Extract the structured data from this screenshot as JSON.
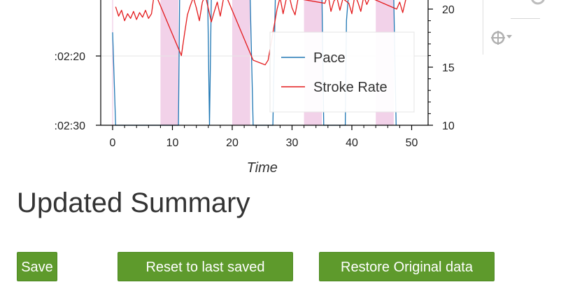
{
  "chart_data": {
    "type": "line",
    "xlabel": "Time",
    "x_ticks": [
      0,
      10,
      20,
      30,
      40,
      50
    ],
    "left_axis_ticks": [
      ":02:20",
      ":02:30"
    ],
    "right_axis_ticks": [
      10,
      15,
      20
    ],
    "xlim": [
      -2,
      52
    ],
    "right_ylim": [
      10,
      22
    ],
    "shaded_intervals": [
      [
        8,
        11
      ],
      [
        20,
        23
      ],
      [
        32,
        35
      ],
      [
        44,
        47
      ]
    ],
    "series": [
      {
        "name": "Pace",
        "color": "#1f77b4",
        "x": [
          0,
          0.5,
          11,
          11.2,
          15.9,
          16.2,
          16.5,
          23,
          23.5,
          26.8,
          27.2,
          33,
          35,
          35.3,
          38.9,
          39.1,
          39.4,
          47,
          47.4
        ],
        "y": [
          18,
          10,
          10,
          21,
          21,
          10,
          21,
          21,
          10,
          10,
          21,
          21,
          21,
          10,
          10,
          19,
          21,
          21,
          10
        ]
      },
      {
        "name": "Stroke Rate",
        "color": "#e31a1c",
        "x": [
          0.5,
          1,
          1.5,
          2,
          2.5,
          3,
          3.5,
          4,
          4.5,
          5,
          5.5,
          6,
          6.5,
          7,
          11.5,
          12,
          12.5,
          13,
          13.5,
          14,
          14.5,
          15,
          15.5,
          16.5,
          17,
          17.5,
          18,
          18.5,
          19,
          23.5,
          24,
          24.5,
          25,
          25.5,
          26,
          27.5,
          28,
          28.5,
          29,
          29.5,
          30,
          30.5,
          31,
          35.5,
          36,
          36.5,
          37,
          37.5,
          38,
          38.5,
          39.5,
          40,
          40.5,
          41,
          41.5,
          42,
          42.5,
          43,
          47.5,
          48,
          48.5,
          49
        ],
        "y": [
          20.2,
          19.4,
          19.9,
          19.0,
          19.6,
          19.2,
          19.8,
          19.1,
          19.7,
          19.3,
          19.9,
          19.2,
          19.6,
          21.5,
          16.0,
          17.8,
          19.5,
          20.3,
          21.0,
          20.1,
          19.0,
          20.6,
          21.2,
          18.9,
          19.8,
          20.6,
          19.4,
          20.8,
          21.1,
          15.6,
          15.5,
          15.4,
          15.3,
          15.2,
          15.6,
          20.0,
          21.0,
          19.6,
          20.8,
          21.2,
          20.1,
          19.5,
          20.9,
          20.5,
          21.3,
          19.8,
          20.7,
          21.0,
          19.9,
          20.9,
          20.5,
          19.6,
          21.2,
          20.6,
          19.8,
          21.1,
          20.4,
          21.0,
          20.0,
          20.6,
          19.7,
          20.8
        ]
      }
    ],
    "legend_placement": "inside-right"
  },
  "summary": {
    "title": "Updated Summary"
  },
  "buttons": {
    "save": "Save",
    "reset": "Reset to last saved",
    "restore": "Restore Original data"
  },
  "colors": {
    "button_bg": "#5e9a2c",
    "shade": "#d97fc0"
  },
  "toolbar": {
    "icons": [
      "reset-icon",
      "crosshair-dropdown-icon"
    ]
  }
}
